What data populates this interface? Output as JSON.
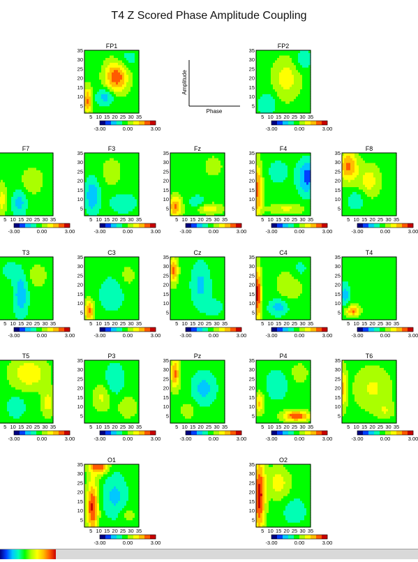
{
  "title": "T4 Z Scored Phase Amplitude Coupling",
  "chart_data": {
    "type": "heatmap",
    "title": "T4 Z Scored Phase Amplitude Coupling",
    "x_ticks": [
      "5",
      "10",
      "15",
      "20",
      "25",
      "30",
      "35"
    ],
    "y_ticks": [
      "5",
      "10",
      "15",
      "20",
      "25",
      "30",
      "35"
    ],
    "xlim": [
      1,
      35
    ],
    "ylim": [
      1,
      35
    ],
    "colorbar": {
      "min_label": "-3.00",
      "mid_label": "0.00",
      "max_label": "3.00",
      "range": [
        -3,
        3
      ]
    },
    "legend_axes": {
      "xlabel": "Phase",
      "ylabel": "Amplitude"
    },
    "plots": [
      {
        "name": "FP1",
        "blobs": [
          [
            21,
            21,
            5,
            6,
            2.6
          ],
          [
            3,
            8,
            2,
            5,
            2.2
          ],
          [
            14,
            10,
            4,
            3,
            -1.4
          ],
          [
            27,
            30,
            5,
            4,
            -0.7
          ]
        ]
      },
      {
        "name": "FP2",
        "blobs": [
          [
            20,
            20,
            6,
            8,
            1.2
          ],
          [
            8,
            6,
            4,
            4,
            -1.0
          ],
          [
            30,
            30,
            4,
            4,
            -0.8
          ]
        ]
      },
      {
        "name": "F7",
        "blobs": [
          [
            14,
            8,
            3,
            5,
            -1.3
          ],
          [
            22,
            20,
            5,
            5,
            0.8
          ],
          [
            3,
            10,
            2,
            6,
            1.2
          ]
        ]
      },
      {
        "name": "F3",
        "blobs": [
          [
            6,
            12,
            3,
            6,
            -1.8
          ],
          [
            25,
            8,
            6,
            4,
            -0.8
          ],
          [
            18,
            25,
            5,
            6,
            0.6
          ]
        ]
      },
      {
        "name": "Fz",
        "blobs": [
          [
            4,
            6,
            3,
            4,
            2.2
          ],
          [
            18,
            8,
            4,
            3,
            -0.8
          ],
          [
            25,
            5,
            6,
            2,
            1.4
          ],
          [
            28,
            28,
            5,
            5,
            0.5
          ]
        ]
      },
      {
        "name": "F4",
        "blobs": [
          [
            33,
            22,
            4,
            6,
            -2.2
          ],
          [
            2,
            15,
            2,
            10,
            2.3
          ],
          [
            20,
            5,
            8,
            2,
            1.0
          ],
          [
            15,
            25,
            5,
            5,
            -0.6
          ]
        ]
      },
      {
        "name": "F8",
        "blobs": [
          [
            5,
            28,
            4,
            6,
            2.2
          ],
          [
            18,
            20,
            5,
            6,
            1.2
          ],
          [
            10,
            10,
            4,
            4,
            -0.8
          ]
        ]
      },
      {
        "name": "T3",
        "blobs": [
          [
            15,
            15,
            3,
            8,
            -1.6
          ],
          [
            25,
            25,
            5,
            5,
            0.6
          ],
          [
            8,
            28,
            4,
            4,
            -0.5
          ]
        ]
      },
      {
        "name": "C3",
        "blobs": [
          [
            4,
            6,
            2,
            4,
            2.3
          ],
          [
            18,
            15,
            5,
            6,
            -1.0
          ],
          [
            28,
            25,
            4,
            5,
            0.5
          ]
        ]
      },
      {
        "name": "Cz",
        "blobs": [
          [
            3,
            28,
            2,
            5,
            2.2
          ],
          [
            20,
            20,
            4,
            8,
            -1.2
          ],
          [
            28,
            8,
            4,
            3,
            -0.8
          ]
        ]
      },
      {
        "name": "C4",
        "blobs": [
          [
            2,
            15,
            1.5,
            10,
            3.0
          ],
          [
            15,
            8,
            4,
            3,
            -1.4
          ],
          [
            22,
            20,
            6,
            6,
            0.8
          ],
          [
            28,
            28,
            4,
            4,
            -0.6
          ]
        ]
      },
      {
        "name": "T4",
        "blobs": [
          [
            3,
            15,
            2,
            4,
            -1.4
          ],
          [
            8,
            6,
            3,
            2,
            2.2
          ],
          [
            20,
            20,
            5,
            6,
            0.3
          ]
        ]
      },
      {
        "name": "T5",
        "blobs": [
          [
            20,
            28,
            8,
            6,
            1.4
          ],
          [
            12,
            10,
            4,
            4,
            -0.9
          ],
          [
            32,
            12,
            3,
            5,
            1.2
          ]
        ]
      },
      {
        "name": "P3",
        "blobs": [
          [
            20,
            25,
            4,
            6,
            -1.0
          ],
          [
            12,
            15,
            4,
            5,
            1.0
          ],
          [
            28,
            10,
            4,
            4,
            0.9
          ]
        ]
      },
      {
        "name": "Pz",
        "blobs": [
          [
            4,
            28,
            2,
            6,
            2.2
          ],
          [
            22,
            20,
            5,
            6,
            -1.3
          ],
          [
            12,
            8,
            3,
            3,
            0.8
          ]
        ]
      },
      {
        "name": "P4",
        "blobs": [
          [
            26,
            5,
            6,
            2,
            2.6
          ],
          [
            3,
            12,
            2,
            4,
            1.6
          ],
          [
            14,
            22,
            5,
            6,
            -0.8
          ],
          [
            28,
            28,
            4,
            4,
            0.7
          ]
        ]
      },
      {
        "name": "T6",
        "blobs": [
          [
            20,
            20,
            8,
            8,
            1.0
          ],
          [
            2,
            20,
            1.5,
            8,
            1.6
          ],
          [
            28,
            8,
            4,
            3,
            0.8
          ]
        ]
      },
      {
        "name": "O1",
        "blobs": [
          [
            6,
            12,
            2.5,
            10,
            2.8
          ],
          [
            10,
            34,
            4,
            3,
            2.6
          ],
          [
            20,
            18,
            5,
            8,
            -1.2
          ],
          [
            28,
            8,
            4,
            3,
            0.6
          ]
        ]
      },
      {
        "name": "O2",
        "blobs": [
          [
            3,
            18,
            2.5,
            14,
            3.0
          ],
          [
            15,
            25,
            5,
            6,
            1.2
          ],
          [
            25,
            10,
            5,
            5,
            -0.8
          ]
        ]
      }
    ]
  }
}
